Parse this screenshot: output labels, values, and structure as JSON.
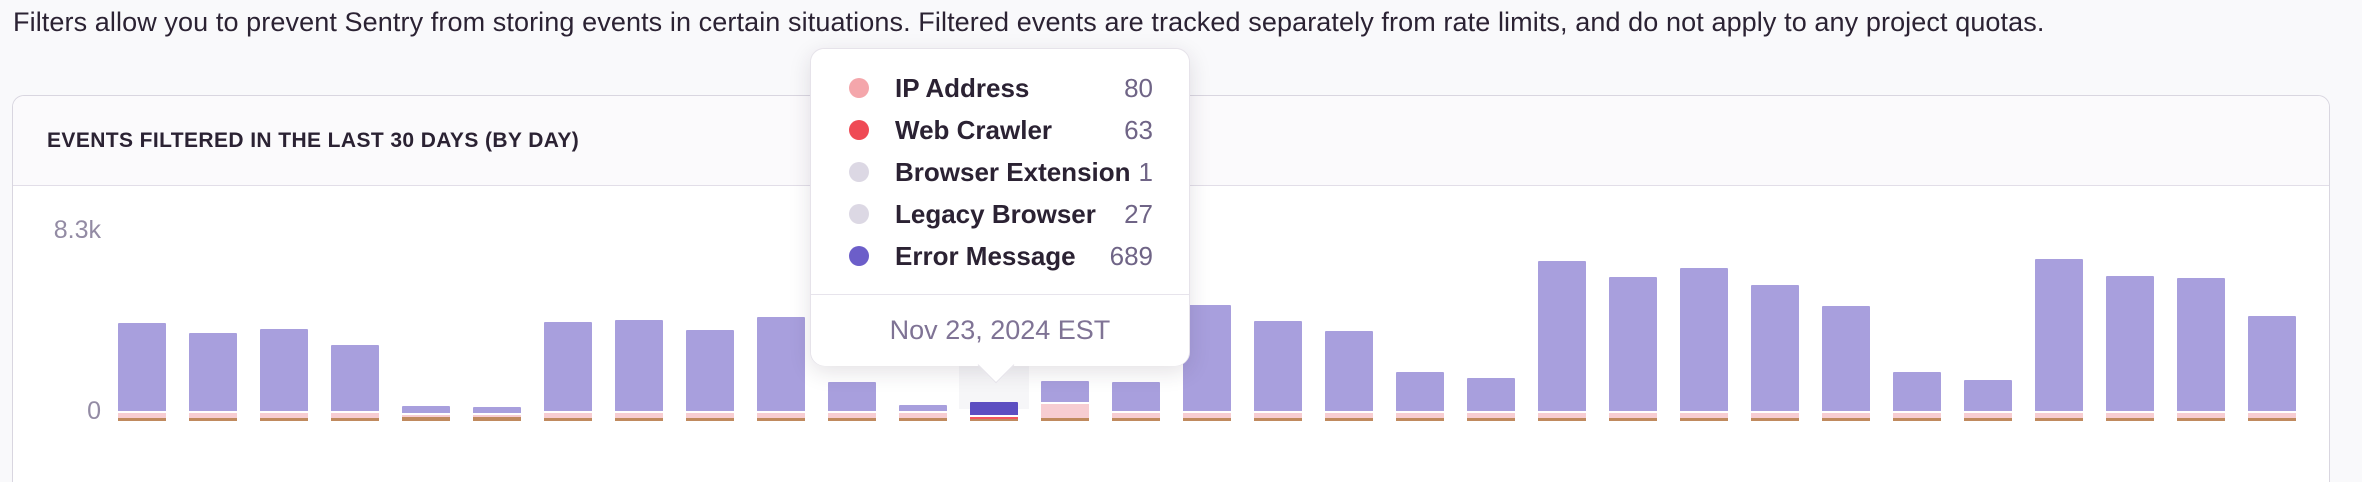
{
  "page": {
    "description": "Filters allow you to prevent Sentry from storing events in certain situations. Filtered events are tracked separately from rate limits, and do not apply to any project quotas."
  },
  "panel": {
    "title": "EVENTS FILTERED IN THE LAST 30 DAYS (BY DAY)"
  },
  "chart_data": {
    "type": "stacked-bar",
    "title": "Events filtered in the last 30 days (by day)",
    "grid": false,
    "x_axis_labels_visible": false,
    "y_axis": {
      "min_value": 0,
      "max_value": 8300,
      "min_label": "0",
      "max_label": "8.3k"
    },
    "bar_count": 31,
    "bar_totals": [
      4550,
      4100,
      4290,
      3540,
      700,
      650,
      4620,
      4700,
      4240,
      4850,
      1800,
      750,
      860,
      1860,
      1820,
      5400,
      4660,
      4200,
      2280,
      2000,
      7450,
      6700,
      7130,
      6340,
      5360,
      2280,
      1910,
      7550,
      6760,
      6660,
      4890
    ],
    "series": [
      {
        "name": "Web Crawler",
        "color": "#c08a5e",
        "values": [
          140,
          140,
          140,
          140,
          190,
          190,
          140,
          140,
          140,
          140,
          140,
          140,
          63,
          140,
          140,
          140,
          140,
          140,
          140,
          140,
          140,
          140,
          140,
          140,
          140,
          140,
          140,
          140,
          140,
          140,
          140
        ]
      },
      {
        "name": "IP Address",
        "color": "#f7cdd2",
        "values": [
          230,
          230,
          230,
          230,
          90,
          90,
          230,
          230,
          230,
          230,
          230,
          230,
          80,
          650,
          230,
          230,
          230,
          230,
          230,
          230,
          230,
          230,
          230,
          230,
          230,
          230,
          230,
          230,
          230,
          230,
          230
        ]
      },
      {
        "name": "Error Message",
        "color": "#a89fdd",
        "values": [
          4180,
          3730,
          3920,
          3170,
          420,
          370,
          4250,
          4330,
          3870,
          4480,
          1430,
          380,
          717,
          1070,
          1450,
          5030,
          4290,
          3830,
          1910,
          1630,
          7080,
          6330,
          6760,
          5970,
          4990,
          1910,
          1540,
          7180,
          6390,
          6290,
          4520
        ]
      }
    ],
    "hovered_bar_index": 12,
    "hovered_date": "Nov 23, 2024 EST",
    "hovered_breakdown": {
      "IP Address": 80,
      "Web Crawler": 63,
      "Browser Extension": 1,
      "Legacy Browser": 27,
      "Error Message": 689,
      "total": 860
    },
    "colors": {
      "bar": "#a89fdd",
      "bar_hovered": "#5c4ec1",
      "hovered_accent": "#f2565e",
      "pink_base": "#f7cdd2",
      "tan_base": "#c08a5e"
    }
  },
  "tooltip": {
    "rows": [
      {
        "label": "IP Address",
        "value": "80",
        "color": "#f4a6ab"
      },
      {
        "label": "Web Crawler",
        "value": "63",
        "color": "#ef4a55"
      },
      {
        "label": "Browser Extension",
        "value": "1",
        "color": "#dcd8e4"
      },
      {
        "label": "Legacy Browser",
        "value": "27",
        "color": "#dcd8e4"
      },
      {
        "label": "Error Message",
        "value": "689",
        "color": "#6c5ec9"
      }
    ],
    "footer": "Nov 23, 2024 EST"
  }
}
